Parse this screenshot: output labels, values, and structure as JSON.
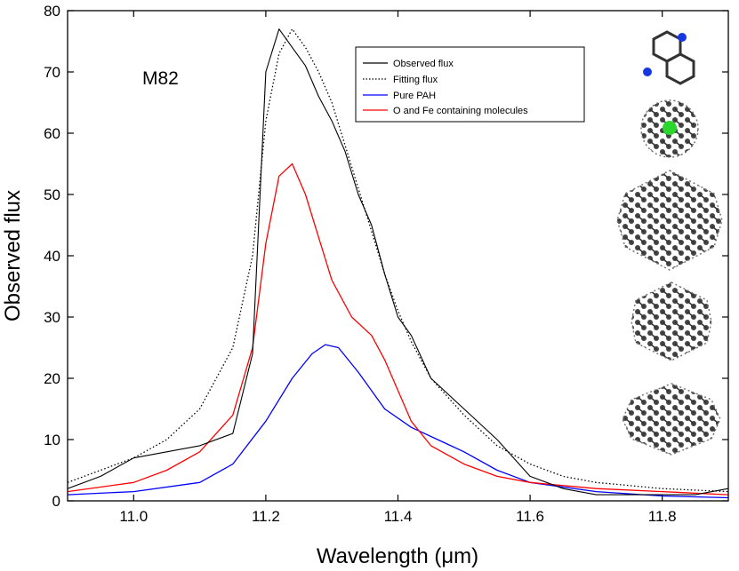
{
  "chart_data": {
    "type": "line",
    "title": "",
    "annotation": "M82",
    "xlabel": "Wavelength (μm)",
    "ylabel": "Observed flux",
    "xlim": [
      10.9,
      11.9
    ],
    "ylim": [
      0,
      80
    ],
    "xticks": [
      11.0,
      11.2,
      11.4,
      11.6,
      11.8
    ],
    "xtick_labels": [
      "11.0",
      "11.2",
      "11.4",
      "11.6",
      "11.8"
    ],
    "yticks": [
      0,
      10,
      20,
      30,
      40,
      50,
      60,
      70,
      80
    ],
    "ytick_labels": [
      "0",
      "10",
      "20",
      "30",
      "40",
      "50",
      "60",
      "70",
      "80"
    ],
    "legend_position": "top-right",
    "series": [
      {
        "name": "Observed flux",
        "color": "#000000",
        "style": "solid",
        "x": [
          10.9,
          10.95,
          11.0,
          11.05,
          11.1,
          11.15,
          11.18,
          11.2,
          11.22,
          11.24,
          11.26,
          11.28,
          11.3,
          11.32,
          11.34,
          11.36,
          11.38,
          11.4,
          11.42,
          11.45,
          11.5,
          11.55,
          11.6,
          11.65,
          11.7,
          11.75,
          11.8,
          11.85,
          11.9
        ],
        "y": [
          2,
          4,
          7,
          8,
          9,
          11,
          24,
          70,
          77,
          74,
          71,
          66,
          62,
          57,
          50,
          45,
          37,
          30,
          27,
          20,
          15,
          10,
          4,
          2,
          1,
          1,
          1,
          1,
          2
        ]
      },
      {
        "name": "Fitting flux",
        "color": "#000000",
        "style": "dotted",
        "x": [
          10.9,
          11.0,
          11.05,
          11.1,
          11.15,
          11.18,
          11.2,
          11.22,
          11.24,
          11.26,
          11.28,
          11.3,
          11.32,
          11.34,
          11.36,
          11.38,
          11.4,
          11.42,
          11.45,
          11.5,
          11.55,
          11.6,
          11.65,
          11.7,
          11.8,
          11.9
        ],
        "y": [
          3,
          7,
          10,
          15,
          25,
          40,
          62,
          73,
          77,
          74,
          70,
          65,
          58,
          51,
          44,
          37,
          31,
          26,
          20,
          14,
          9,
          6,
          4,
          3,
          2,
          1.5
        ]
      },
      {
        "name": "Pure PAH",
        "color": "#0000ff",
        "style": "solid",
        "x": [
          10.9,
          11.0,
          11.1,
          11.15,
          11.2,
          11.24,
          11.27,
          11.29,
          11.31,
          11.34,
          11.38,
          11.42,
          11.46,
          11.5,
          11.55,
          11.6,
          11.7,
          11.8,
          11.9
        ],
        "y": [
          1,
          1.5,
          3,
          6,
          13,
          20,
          24,
          25.5,
          25,
          21,
          15,
          12,
          10,
          8,
          5,
          3,
          1.5,
          0.8,
          0.5
        ]
      },
      {
        "name": "O and Fe containing molecules",
        "color": "#ff0000",
        "style": "solid",
        "x": [
          10.9,
          11.0,
          11.05,
          11.1,
          11.15,
          11.18,
          11.2,
          11.22,
          11.24,
          11.26,
          11.28,
          11.3,
          11.33,
          11.36,
          11.38,
          11.4,
          11.42,
          11.45,
          11.5,
          11.55,
          11.6,
          11.7,
          11.8,
          11.9
        ],
        "y": [
          1.5,
          3,
          5,
          8,
          14,
          25,
          42,
          53,
          55,
          50,
          43,
          36,
          30,
          27,
          23,
          18,
          13,
          9,
          6,
          4,
          3,
          2,
          1.5,
          1
        ]
      }
    ],
    "molecule_insets": [
      "molecule-1",
      "molecule-2",
      "molecule-3",
      "molecule-4",
      "molecule-5"
    ]
  }
}
